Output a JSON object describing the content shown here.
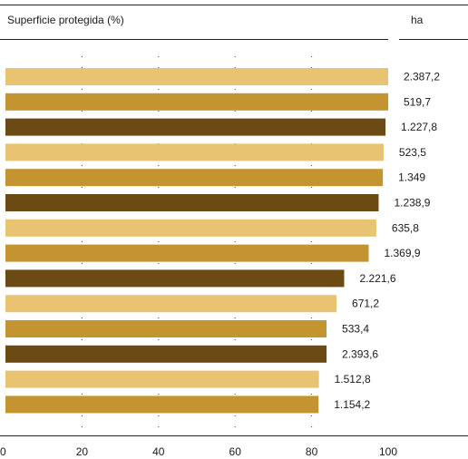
{
  "chart_data": {
    "type": "bar",
    "orientation": "horizontal",
    "title": "Superficie protegida (%)",
    "value_column_header": "ha",
    "xlim": [
      0,
      100
    ],
    "xticks": [
      0,
      20,
      40,
      60,
      80,
      100
    ],
    "grid": "dotted vertical lines",
    "color_cycle": [
      "#E8C472",
      "#C49431",
      "#6B4A14"
    ],
    "bars": [
      {
        "value": 100,
        "label": "2.387,2"
      },
      {
        "value": 100,
        "label": "519,7"
      },
      {
        "value": 99.3,
        "label": "1.227,8"
      },
      {
        "value": 98.8,
        "label": "523,5"
      },
      {
        "value": 98.6,
        "label": "1.349"
      },
      {
        "value": 97.5,
        "label": "1.238,9"
      },
      {
        "value": 96.9,
        "label": "635,8"
      },
      {
        "value": 94.9,
        "label": "1.369,9"
      },
      {
        "value": 88.5,
        "label": "2.221,6"
      },
      {
        "value": 86.5,
        "label": "671,2"
      },
      {
        "value": 83.9,
        "label": "533,4"
      },
      {
        "value": 83.9,
        "label": "2.393,6"
      },
      {
        "value": 81.9,
        "label": "1.512,8"
      },
      {
        "value": 81.8,
        "label": "1.154,2"
      }
    ]
  }
}
